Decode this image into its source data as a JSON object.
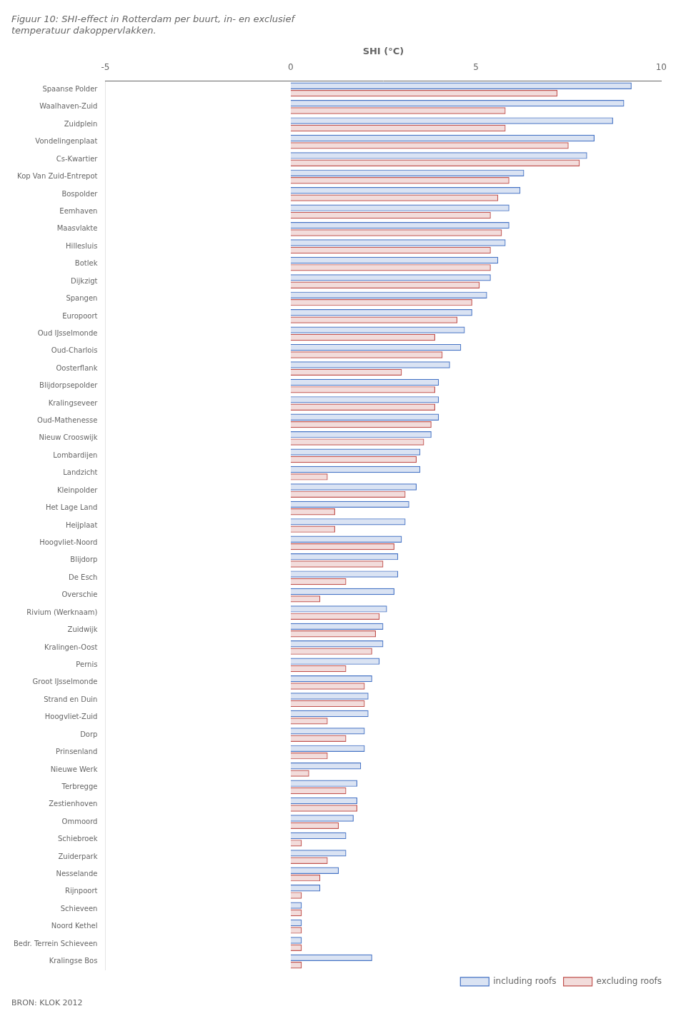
{
  "chart_data": {
    "type": "bar",
    "orientation": "horizontal",
    "title": "Figuur 10: SHI-effect in Rotterdam per buurt, in- en exclusief\ntemperatuur dakoppervlakken.",
    "xlabel": "SHI (°C)",
    "annotations": [
      "BRON: KLOK 2012"
    ],
    "categories": [
      "Spaanse Polder",
      "Waalhaven-Zuid",
      "Zuidplein",
      "Vondelingenplaat",
      "Cs-Kwartier",
      "Kop Van Zuid-Entrepot",
      "Bospolder",
      "Eemhaven",
      "Maasvlakte",
      "Hillesluis",
      "Botlek",
      "Dijkzigt",
      "Spangen",
      "Europoort",
      "Oud IJsselmonde",
      "Oud-Charlois",
      "Oosterflank",
      "Blijdorpsepolder",
      "Kralingseveer",
      "Oud-Mathenesse",
      "Nieuw Crooswijk",
      "Lombardijen",
      "Landzicht",
      "Kleinpolder",
      "Het Lage Land",
      "Heijplaat",
      "Hoogvliet-Noord",
      "Blijdorp",
      "De Esch",
      "Overschie",
      "Rivium (Werknaam)",
      "Zuidwijk",
      "Kralingen-Oost",
      "Pernis",
      "Groot IJsselmonde",
      "Strand en Duin",
      "Hoogvliet-Zuid",
      "Dorp",
      "Prinsenland",
      "Nieuwe Werk",
      "Terbregge",
      "Zestienhoven",
      "Ommoord",
      "Schiebroek",
      "Zuiderpark",
      "Nesselande",
      "Rijnpoort",
      "Schieveen",
      "Noord Kethel",
      "Bedr. Terrein Schieveen",
      "Kralingse Bos"
    ],
    "series": [
      {
        "name": "including roofs",
        "color": "#4472C4",
        "values": [
          9.2,
          9.0,
          8.7,
          8.2,
          8.0,
          6.3,
          6.2,
          5.9,
          5.9,
          5.8,
          5.6,
          5.4,
          5.3,
          4.9,
          4.7,
          4.6,
          4.3,
          4.0,
          4.0,
          4.0,
          3.8,
          3.5,
          3.5,
          3.4,
          3.2,
          3.1,
          3.0,
          2.9,
          2.9,
          2.8,
          2.6,
          2.5,
          2.5,
          2.4,
          2.2,
          2.1,
          2.1,
          2.0,
          2.0,
          1.9,
          1.8,
          1.8,
          1.7,
          1.5,
          1.5,
          1.3,
          0.8,
          0.3,
          0.3,
          0.3,
          2.2
        ]
      },
      {
        "name": "excluding roofs",
        "color": "#C0504D",
        "values": [
          7.2,
          5.8,
          5.8,
          7.5,
          7.8,
          5.9,
          5.6,
          5.4,
          5.7,
          5.4,
          5.4,
          5.1,
          4.9,
          4.5,
          3.9,
          4.1,
          3.0,
          3.9,
          3.9,
          3.8,
          3.6,
          3.4,
          1.0,
          3.1,
          1.2,
          1.2,
          2.8,
          2.5,
          1.5,
          0.8,
          2.4,
          2.3,
          2.2,
          1.5,
          2.0,
          2.0,
          1.0,
          1.5,
          1.0,
          0.5,
          1.5,
          1.8,
          1.3,
          0.3,
          1.0,
          0.8,
          0.3,
          0.3,
          0.3,
          0.3,
          0.3
        ]
      }
    ],
    "xlim": [
      -5,
      10
    ],
    "xticks": [
      -5,
      0,
      5,
      10
    ],
    "grid": false,
    "legend": "lower right"
  }
}
